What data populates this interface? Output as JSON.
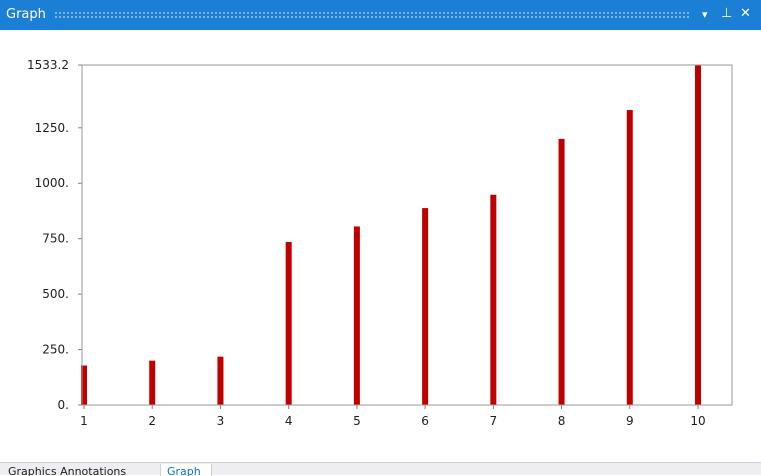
{
  "window": {
    "title": "Graph",
    "controls": {
      "dropdown": "▾",
      "pin": "⊥",
      "close": "✕"
    }
  },
  "colors": {
    "titlebar": "#1c7fd6",
    "bar": "#c00000",
    "axis": "#808080"
  },
  "chart_data": {
    "type": "bar",
    "categories": [
      "1",
      "2",
      "3",
      "4",
      "5",
      "6",
      "7",
      "8",
      "9",
      "10"
    ],
    "values": [
      178,
      200,
      218,
      735,
      805,
      888,
      948,
      1200,
      1330,
      1533.2
    ],
    "ylim": [
      0,
      1533.2
    ],
    "yticks": [
      0,
      250,
      500,
      750,
      1000,
      1250,
      1533.2
    ],
    "ytick_labels": [
      "0.",
      "250.",
      "500.",
      "750.",
      "1000.",
      "1250.",
      "1533.2"
    ],
    "xtick_labels": [
      "1",
      "2",
      "3",
      "4",
      "5",
      "6",
      "7",
      "8",
      "9",
      "10"
    ],
    "grid": false
  },
  "tabs": [
    {
      "label": "Graphics Annotations",
      "active": false
    },
    {
      "label": "Graph",
      "active": true
    }
  ]
}
